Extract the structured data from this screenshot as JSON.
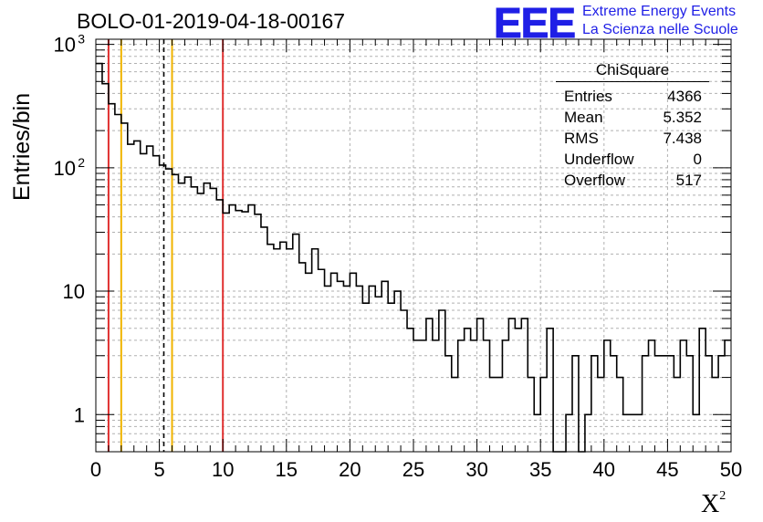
{
  "title": "BOLO-01-2019-04-18-00167",
  "logo": {
    "mark": "EEE",
    "line1": "Extreme Energy Events",
    "line2": "La Scienza nelle Scuole",
    "color": "#1f1fe6"
  },
  "stats_box": {
    "name": "ChiSquare",
    "rows": [
      {
        "label": "Entries",
        "value": "4366"
      },
      {
        "label": "Mean",
        "value": "5.352"
      },
      {
        "label": "RMS",
        "value": "7.438"
      },
      {
        "label": "Underflow",
        "value": "0"
      },
      {
        "label": "Overflow",
        "value": "517"
      }
    ]
  },
  "chart_data": {
    "type": "bar",
    "histogram": true,
    "xlabel": "X",
    "xlabel_superscript": "2",
    "ylabel": "Entries/bin",
    "xlim": [
      0,
      50
    ],
    "ylim": [
      0.5,
      1100
    ],
    "yscale": "log",
    "grid": true,
    "bin_width": 0.5,
    "x_ticks": [
      "0",
      "5",
      "10",
      "15",
      "20",
      "25",
      "30",
      "35",
      "40",
      "45",
      "50"
    ],
    "y_ticks": [
      {
        "value": 1,
        "label": "1",
        "sup": ""
      },
      {
        "value": 10,
        "label": "10",
        "sup": ""
      },
      {
        "value": 100,
        "label": "10",
        "sup": "2"
      },
      {
        "value": 1000,
        "label": "10",
        "sup": "3"
      }
    ],
    "values": [
      700,
      480,
      330,
      270,
      230,
      155,
      165,
      130,
      150,
      125,
      105,
      98,
      88,
      75,
      84,
      70,
      62,
      75,
      68,
      55,
      43,
      50,
      45,
      44,
      50,
      42,
      33,
      24,
      22,
      25,
      22,
      29,
      17,
      14,
      22,
      15,
      11,
      14,
      12,
      11,
      14,
      11,
      8,
      11,
      9,
      12,
      8,
      10,
      7,
      5,
      4,
      4,
      6,
      4,
      7,
      3,
      2,
      4,
      5,
      4,
      6,
      4,
      2,
      2,
      4,
      6,
      5,
      6,
      2,
      1,
      2,
      5,
      0.5,
      0.5,
      1,
      3,
      0.5,
      1,
      3,
      2,
      4,
      3,
      2,
      1,
      1,
      1,
      3,
      4,
      3,
      3,
      3,
      2,
      4,
      3,
      1,
      5,
      3,
      2,
      3,
      4
    ],
    "reference_lines": [
      {
        "x": 1,
        "color": "#e03030",
        "style": "solid"
      },
      {
        "x": 2,
        "color": "#f0b400",
        "style": "solid"
      },
      {
        "x": 5.352,
        "color": "#000000",
        "style": "dashed"
      },
      {
        "x": 6,
        "color": "#f0b400",
        "style": "solid"
      },
      {
        "x": 10,
        "color": "#e03030",
        "style": "solid"
      }
    ]
  }
}
